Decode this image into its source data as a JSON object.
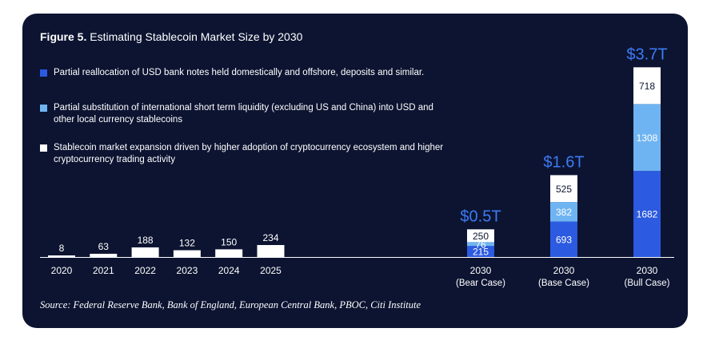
{
  "title": {
    "figure_label": "Figure 5.",
    "text": "Estimating Stablecoin Market Size by 2030"
  },
  "legend": [
    {
      "label": "Partial reallocation of USD bank notes held domestically and offshore, deposits and similar.",
      "color": "#2c5ae0"
    },
    {
      "label": "Partial substitution of international short term liquidity (excluding US and China) into USD and other local currency stablecoins",
      "color": "#6fb4f2"
    },
    {
      "label": "Stablecoin market expansion driven by higher adoption of cryptocurrency ecosystem and higher cryptocurrency trading activity",
      "color": "#ffffff"
    }
  ],
  "source": "Source: Federal Reserve Bank, Bank of England, European Central Bank, PBOC, Citi Institute",
  "chart_data": {
    "type": "bar",
    "historical": {
      "categories": [
        "2020",
        "2021",
        "2022",
        "2023",
        "2024",
        "2025"
      ],
      "values": [
        8,
        63,
        188,
        132,
        150,
        234
      ],
      "color": "#ffffff"
    },
    "projections": {
      "categories": [
        {
          "year": "2030",
          "case": "(Bear Case)"
        },
        {
          "year": "2030",
          "case": "(Base Case)"
        },
        {
          "year": "2030",
          "case": "(Bull Case)"
        }
      ],
      "totals": [
        "$0.5T",
        "$1.6T",
        "$3.7T"
      ],
      "series": [
        {
          "values": [
            215,
            693,
            1682
          ],
          "color": "#2c5ae0"
        },
        {
          "values": [
            76,
            382,
            1308
          ],
          "color": "#6fb4f2"
        },
        {
          "values": [
            250,
            525,
            718
          ],
          "color": "#ffffff"
        }
      ]
    },
    "total_color": "#3d7bf5",
    "grid": false
  }
}
